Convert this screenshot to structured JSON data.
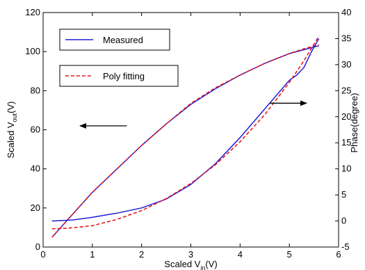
{
  "chart_data": {
    "type": "line",
    "xlabel_main": "Scaled V",
    "xlabel_sub": "in",
    "xlabel_unit": "(V)",
    "ylabel_left_main": "Scaled V",
    "ylabel_left_sub": "out",
    "ylabel_left_unit": "(V)",
    "ylabel_right": "Phase(degree)",
    "xlim": [
      0,
      6
    ],
    "ylim_left": [
      0,
      120
    ],
    "ylim_right": [
      -5,
      40
    ],
    "xticks": [
      "0",
      "1",
      "2",
      "3",
      "4",
      "5",
      "6"
    ],
    "yticks_left": [
      "0",
      "20",
      "40",
      "60",
      "80",
      "100",
      "120"
    ],
    "yticks_right": [
      "-5",
      "0",
      "5",
      "10",
      "15",
      "20",
      "25",
      "30",
      "35",
      "40"
    ],
    "legend": {
      "placement": "top-left",
      "entries": [
        "Measured",
        "Poly fitting"
      ]
    },
    "colors": {
      "measured": "#1f1fd6",
      "fitting": "#e8161b",
      "axis": "#000000"
    },
    "series": [
      {
        "name": "Measured",
        "axis": "left",
        "x": [
          0.18,
          0.5,
          1.0,
          1.5,
          2.0,
          2.5,
          3.0,
          3.5,
          4.0,
          4.5,
          5.0,
          5.3,
          5.6
        ],
        "y": [
          5,
          14,
          28,
          40,
          52,
          63,
          73,
          81,
          88,
          94,
          99,
          101,
          103
        ]
      },
      {
        "name": "Poly fitting",
        "axis": "left",
        "x": [
          0.18,
          0.5,
          1.0,
          1.5,
          2.0,
          2.5,
          3.0,
          3.5,
          4.0,
          4.5,
          5.0,
          5.3,
          5.6
        ],
        "y": [
          5,
          14,
          28,
          40,
          52,
          63,
          73.5,
          81.5,
          88,
          94,
          99,
          101.5,
          103.5
        ]
      },
      {
        "name": "Measured",
        "axis": "right",
        "x": [
          0.18,
          0.6,
          1.0,
          1.5,
          2.0,
          2.5,
          3.0,
          3.5,
          4.0,
          4.5,
          5.0,
          5.15,
          5.3,
          5.45,
          5.6
        ],
        "y": [
          0,
          0.2,
          0.7,
          1.5,
          2.5,
          4.2,
          7,
          11,
          16,
          21.5,
          27,
          28,
          29.5,
          32.5,
          35
        ]
      },
      {
        "name": "Poly fitting",
        "axis": "right",
        "x": [
          0.18,
          0.5,
          1.0,
          1.5,
          2.0,
          2.5,
          3.0,
          3.5,
          4.0,
          4.5,
          5.0,
          5.3,
          5.6
        ],
        "y": [
          -1.5,
          -1.4,
          -0.9,
          0.3,
          2.0,
          4.3,
          7.2,
          10.8,
          15.2,
          20.4,
          26.6,
          30.8,
          35.5
        ]
      }
    ],
    "annotations": [
      {
        "kind": "arrow",
        "points_to": "left axis"
      },
      {
        "kind": "arrow",
        "points_to": "right axis"
      }
    ]
  }
}
